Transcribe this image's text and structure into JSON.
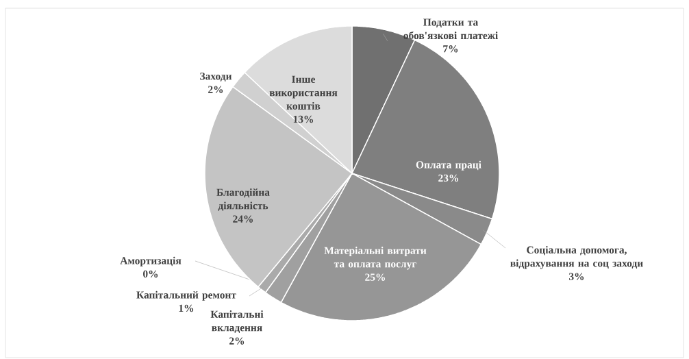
{
  "chart_data": {
    "type": "pie",
    "categories": [
      "Податки та обов'язкові платежі",
      "Оплата праці",
      "Соціальна допомога, відрахування на соц заходи",
      "Матеріальні витрати та оплата послуг",
      "Капітальні вкладення",
      "Капітальний ремонт",
      "Амортизація",
      "Благодійна діяльність",
      "Заходи",
      "Інше використання коштів"
    ],
    "values": [
      7,
      23,
      3,
      25,
      2,
      1,
      0,
      24,
      2,
      13
    ],
    "value_labels": [
      "7%",
      "23%",
      "3%",
      "25%",
      "2%",
      "1%",
      "0%",
      "24%",
      "2%",
      "13%"
    ],
    "colors": [
      "#707070",
      "#7f7f7f",
      "#8a8a8a",
      "#969696",
      "#a0a0a0",
      "#aaaaaa",
      "#b4b4b4",
      "#c4c4c4",
      "#d0d0d0",
      "#dcdcdc"
    ]
  }
}
